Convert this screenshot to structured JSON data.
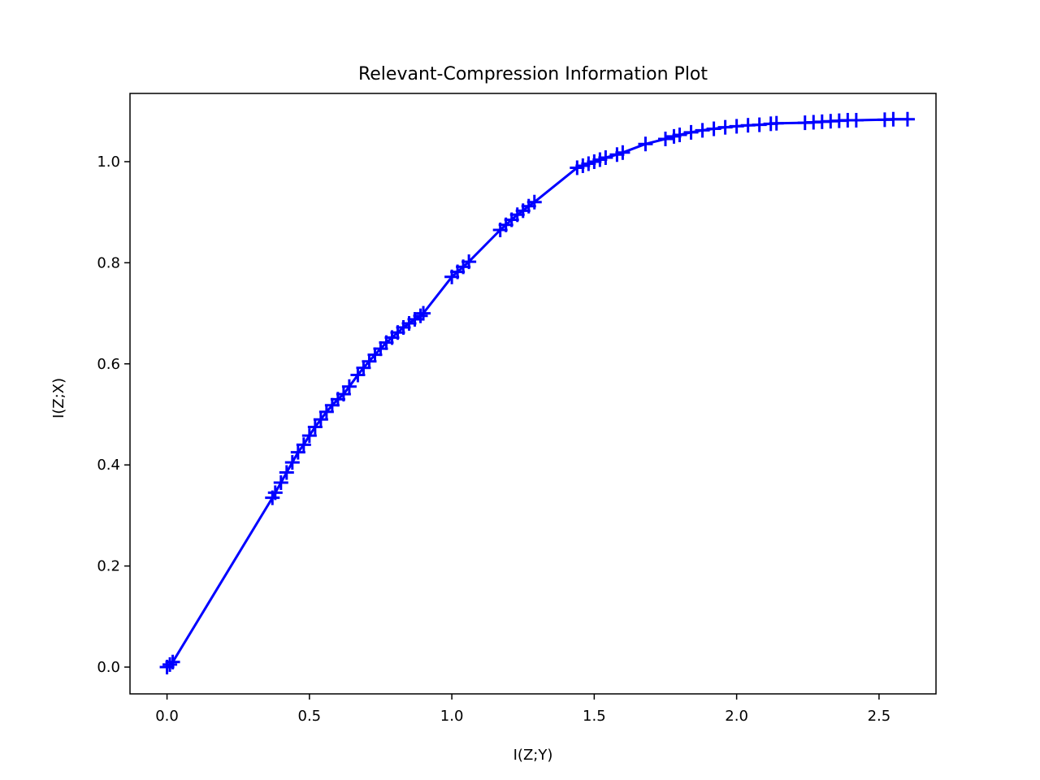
{
  "chart_data": {
    "type": "line",
    "title": "Relevant-Compression Information Plot",
    "xlabel": "I(Z;Y)",
    "ylabel": "I(Z;X)",
    "xlim": [
      -0.13,
      2.7
    ],
    "ylim": [
      -0.053,
      1.135
    ],
    "xticks": [
      0.0,
      0.5,
      1.0,
      1.5,
      2.0,
      2.5
    ],
    "xtick_labels": [
      "0.0",
      "0.5",
      "1.0",
      "1.5",
      "2.0",
      "2.5"
    ],
    "yticks": [
      0.0,
      0.2,
      0.4,
      0.6,
      0.8,
      1.0
    ],
    "ytick_labels": [
      "0.0",
      "0.2",
      "0.4",
      "0.6",
      "0.8",
      "1.0"
    ],
    "grid": false,
    "line_color": "#0000ff",
    "marker": "plus",
    "series": [
      {
        "x": [
          0.0,
          0.01,
          0.02,
          0.37,
          0.38,
          0.4,
          0.42,
          0.44,
          0.46,
          0.48,
          0.5,
          0.52,
          0.54,
          0.56,
          0.58,
          0.6,
          0.62,
          0.64,
          0.67,
          0.69,
          0.71,
          0.73,
          0.75,
          0.77,
          0.79,
          0.81,
          0.83,
          0.85,
          0.87,
          0.89,
          0.9,
          1.0,
          1.02,
          1.04,
          1.06,
          1.17,
          1.19,
          1.21,
          1.23,
          1.25,
          1.27,
          1.29,
          1.44,
          1.46,
          1.48,
          1.5,
          1.52,
          1.54,
          1.58,
          1.6,
          1.68,
          1.75,
          1.78,
          1.8,
          1.84,
          1.88,
          1.92,
          1.96,
          2.0,
          2.04,
          2.08,
          2.12,
          2.14,
          2.24,
          2.27,
          2.3,
          2.33,
          2.36,
          2.39,
          2.42,
          2.52,
          2.55,
          2.6
        ],
        "y": [
          0.0,
          0.005,
          0.01,
          0.335,
          0.345,
          0.365,
          0.385,
          0.405,
          0.425,
          0.44,
          0.458,
          0.475,
          0.49,
          0.505,
          0.518,
          0.53,
          0.54,
          0.555,
          0.578,
          0.592,
          0.605,
          0.618,
          0.63,
          0.642,
          0.652,
          0.662,
          0.672,
          0.68,
          0.688,
          0.695,
          0.7,
          0.772,
          0.782,
          0.792,
          0.802,
          0.865,
          0.875,
          0.885,
          0.895,
          0.903,
          0.912,
          0.92,
          0.988,
          0.992,
          0.996,
          1.0,
          1.004,
          1.008,
          1.014,
          1.018,
          1.035,
          1.045,
          1.05,
          1.053,
          1.058,
          1.062,
          1.065,
          1.068,
          1.07,
          1.072,
          1.073,
          1.075,
          1.076,
          1.077,
          1.078,
          1.079,
          1.08,
          1.081,
          1.082,
          1.082,
          1.083,
          1.084,
          1.084
        ]
      }
    ]
  }
}
